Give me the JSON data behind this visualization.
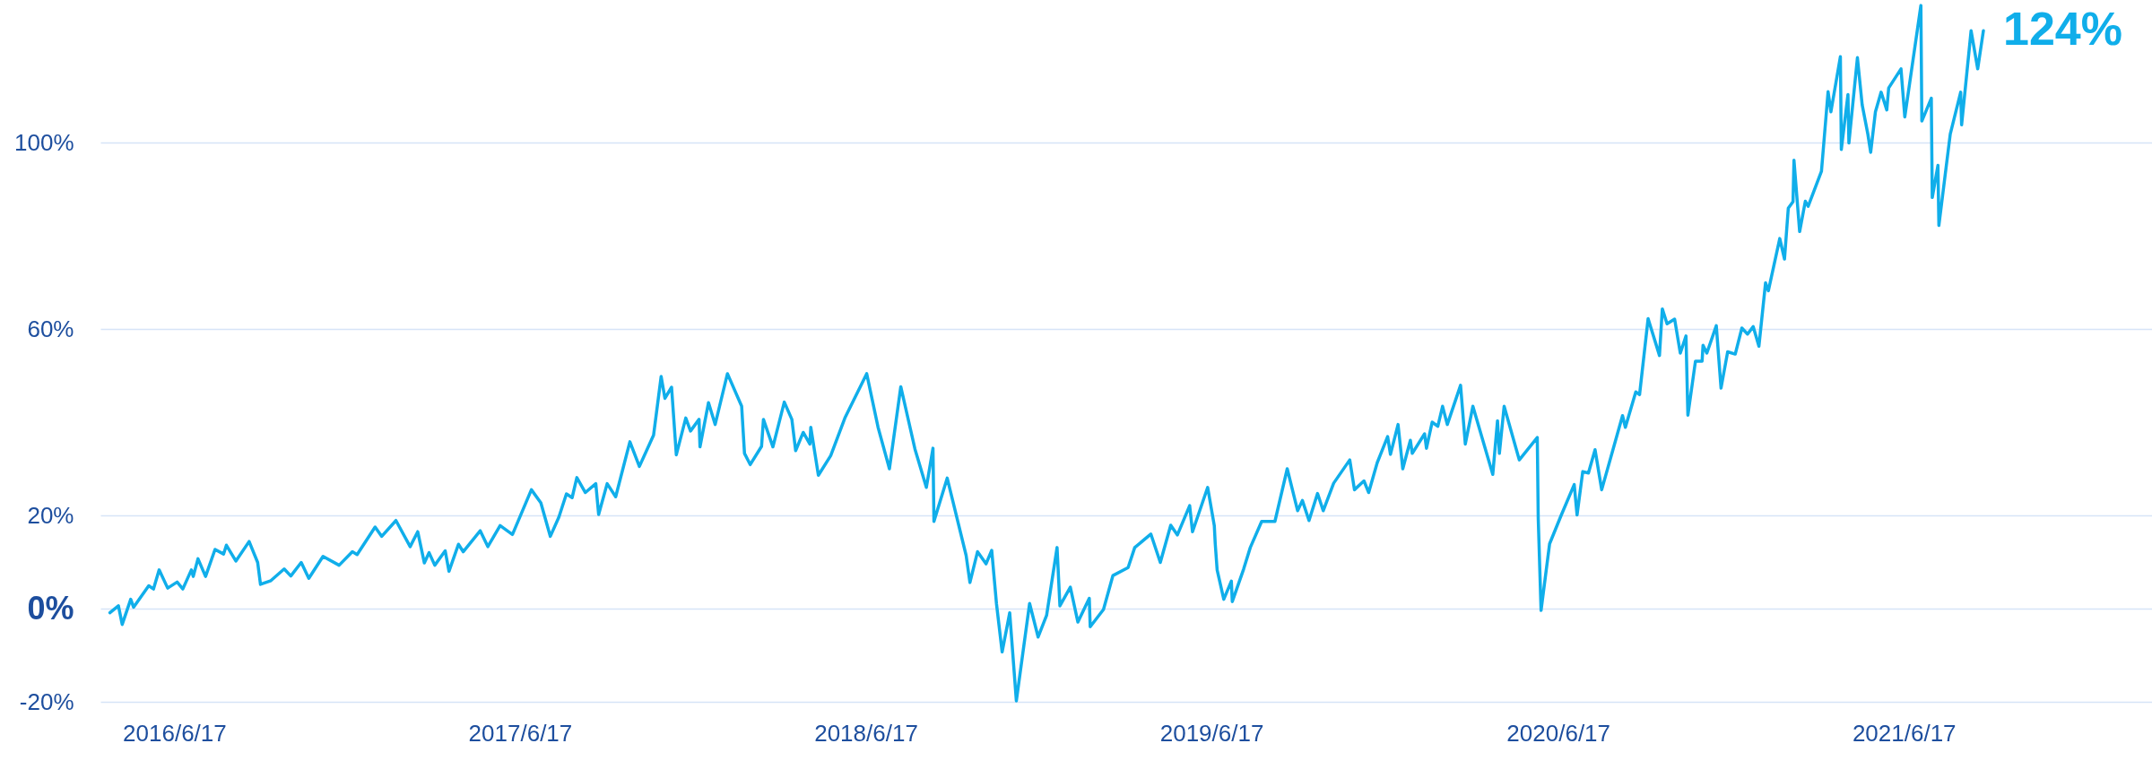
{
  "chart_data": {
    "type": "line",
    "x": [
      "2016-04-10",
      "2016-04-19",
      "2016-04-23",
      "2016-05-02",
      "2016-05-05",
      "2016-05-21",
      "2016-05-26",
      "2016-06-01",
      "2016-06-10",
      "2016-06-20",
      "2016-06-26",
      "2016-07-05",
      "2016-07-07",
      "2016-07-12",
      "2016-07-20",
      "2016-07-30",
      "2016-08-08",
      "2016-08-11",
      "2016-08-21",
      "2016-09-04",
      "2016-09-13",
      "2016-09-16",
      "2016-09-27",
      "2016-10-11",
      "2016-10-18",
      "2016-10-29",
      "2016-11-06",
      "2016-11-21",
      "2016-12-08",
      "2016-12-22",
      "2016-12-27",
      "2017-01-15",
      "2017-01-22",
      "2017-02-06",
      "2017-02-21",
      "2017-03-01",
      "2017-03-08",
      "2017-03-13",
      "2017-03-19",
      "2017-03-30",
      "2017-04-03",
      "2017-04-13",
      "2017-04-18",
      "2017-05-06",
      "2017-05-14",
      "2017-05-27",
      "2017-06-09",
      "2017-06-29",
      "2017-07-09",
      "2017-07-19",
      "2017-07-28",
      "2017-08-05",
      "2017-08-11",
      "2017-08-16",
      "2017-08-25",
      "2017-09-05",
      "2017-09-08",
      "2017-09-17",
      "2017-09-26",
      "2017-10-11",
      "2017-10-21",
      "2017-11-05",
      "2017-11-13",
      "2017-11-17",
      "2017-11-24",
      "2017-11-29",
      "2017-12-09",
      "2017-12-14",
      "2017-12-23",
      "2017-12-24",
      "2018-01-02",
      "2018-01-09",
      "2018-01-22",
      "2018-02-06",
      "2018-02-09",
      "2018-02-15",
      "2018-02-27",
      "2018-03-01",
      "2018-03-11",
      "2018-03-23",
      "2018-03-31",
      "2018-04-04",
      "2018-04-12",
      "2018-04-19",
      "2018-04-20",
      "2018-04-28",
      "2018-05-11",
      "2018-05-26",
      "2018-06-18",
      "2018-06-30",
      "2018-07-12",
      "2018-07-24",
      "2018-08-08",
      "2018-08-20",
      "2018-08-27",
      "2018-08-28",
      "2018-09-11",
      "2018-10-01",
      "2018-10-05",
      "2018-10-13",
      "2018-10-22",
      "2018-10-28",
      "2018-11-02",
      "2018-11-08",
      "2018-11-16",
      "2018-11-23",
      "2018-12-07",
      "2018-12-16",
      "2018-12-25",
      "2019-01-05",
      "2019-01-08",
      "2019-01-19",
      "2019-01-27",
      "2019-02-08",
      "2019-02-09",
      "2019-02-23",
      "2019-03-05",
      "2019-03-21",
      "2019-03-28",
      "2019-04-14",
      "2019-04-24",
      "2019-05-05",
      "2019-05-12",
      "2019-05-25",
      "2019-05-28",
      "2019-06-13",
      "2019-06-20",
      "2019-06-21",
      "2019-06-23",
      "2019-06-30",
      "2019-07-08",
      "2019-07-09",
      "2019-07-21",
      "2019-07-28",
      "2019-08-09",
      "2019-08-23",
      "2019-09-05",
      "2019-09-16",
      "2019-09-21",
      "2019-09-28",
      "2019-10-07",
      "2019-10-13",
      "2019-10-24",
      "2019-11-10",
      "2019-11-15",
      "2019-11-25",
      "2019-11-30",
      "2019-12-09",
      "2019-12-20",
      "2019-12-23",
      "2019-12-31",
      "2020-01-05",
      "2020-01-13",
      "2020-01-15",
      "2020-01-28",
      "2020-01-30",
      "2020-02-05",
      "2020-02-11",
      "2020-02-16",
      "2020-02-21",
      "2020-03-06",
      "2020-03-11",
      "2020-03-19",
      "2020-04-09",
      "2020-04-14",
      "2020-04-16",
      "2020-04-21",
      "2020-05-07",
      "2020-05-26",
      "2020-05-27",
      "2020-05-30",
      "2020-06-08",
      "2020-06-20",
      "2020-07-04",
      "2020-07-07",
      "2020-07-13",
      "2020-07-19",
      "2020-07-26",
      "2020-08-02",
      "2020-08-24",
      "2020-08-27",
      "2020-09-07",
      "2020-09-11",
      "2020-09-20",
      "2020-10-02",
      "2020-10-05",
      "2020-10-10",
      "2020-10-18",
      "2020-10-24",
      "2020-10-30",
      "2020-11-01",
      "2020-11-09",
      "2020-11-16",
      "2020-11-17",
      "2020-11-21",
      "2020-12-01",
      "2020-12-06",
      "2020-12-13",
      "2020-12-21",
      "2020-12-28",
      "2021-01-03",
      "2021-01-09",
      "2021-01-15",
      "2021-01-22",
      "2021-01-25",
      "2021-02-06",
      "2021-02-11",
      "2021-02-15",
      "2021-02-20",
      "2021-02-21",
      "2021-02-27",
      "2021-03-05",
      "2021-03-08",
      "2021-03-22",
      "2021-03-25",
      "2021-03-29",
      "2021-04-01",
      "2021-04-11",
      "2021-04-12",
      "2021-04-19",
      "2021-04-20",
      "2021-04-29",
      "2021-05-04",
      "2021-05-10",
      "2021-05-13",
      "2021-05-18",
      "2021-05-24",
      "2021-05-30",
      "2021-06-01",
      "2021-06-14",
      "2021-06-18",
      "2021-07-05",
      "2021-07-06",
      "2021-07-16",
      "2021-07-17",
      "2021-07-23",
      "2021-07-24",
      "2021-08-05",
      "2021-08-16",
      "2021-08-17",
      "2021-08-27",
      "2021-09-03",
      "2021-09-09"
    ],
    "series": [
      {
        "color": "#10aeea",
        "values": [
          -0.9,
          0.6,
          -3.4,
          2.0,
          0.3,
          4.9,
          4.2,
          8.3,
          4.4,
          5.7,
          4.2,
          8.3,
          6.9,
          10.7,
          6.9,
          12.7,
          11.7,
          13.6,
          10.2,
          14.4,
          9.9,
          5.2,
          6.0,
          8.5,
          7.0,
          9.9,
          6.5,
          11.2,
          9.3,
          12.2,
          11.6,
          17.5,
          15.5,
          18.9,
          13.3,
          16.5,
          9.8,
          12.0,
          9.3,
          12.4,
          8.0,
          13.8,
          12.2,
          16.7,
          13.3,
          17.8,
          15.9,
          25.5,
          22.7,
          15.5,
          19.6,
          24.6,
          23.8,
          28.1,
          24.9,
          26.8,
          20.2,
          26.8,
          24.0,
          35.8,
          30.5,
          37.2,
          49.8,
          45.1,
          47.5,
          33.0,
          40.9,
          38.1,
          40.6,
          34.7,
          44.2,
          39.5,
          50.4,
          43.4,
          33.3,
          30.9,
          34.8,
          40.6,
          34.7,
          44.3,
          40.6,
          33.9,
          37.8,
          35.3,
          38.9,
          28.6,
          32.8,
          40.9,
          50.4,
          38.9,
          30.0,
          47.6,
          34.2,
          26.0,
          34.4,
          18.7,
          28.0,
          11.4,
          5.6,
          12.2,
          9.6,
          12.5,
          1.1,
          -9.3,
          -0.9,
          -19.8,
          1.1,
          -6.1,
          -1.4,
          13.1,
          0.6,
          4.6,
          -2.9,
          2.2,
          -3.9,
          -0.2,
          7.1,
          8.8,
          13.1,
          16.0,
          9.9,
          17.9,
          15.8,
          22.1,
          16.5,
          26.0,
          17.8,
          13.9,
          8.3,
          2.0,
          5.9,
          1.5,
          8.5,
          13.1,
          18.7,
          18.7,
          30.0,
          21.0,
          23.2,
          18.9,
          24.7,
          21.0,
          26.9,
          31.9,
          25.5,
          27.4,
          24.9,
          31.3,
          36.9,
          33.1,
          39.5,
          30.0,
          36.1,
          33.3,
          37.5,
          34.4,
          40.0,
          39.1,
          43.4,
          39.5,
          47.9,
          35.3,
          43.4,
          28.8,
          40.3,
          33.3,
          43.4,
          31.9,
          36.7,
          19.4,
          -0.4,
          13.9,
          19.9,
          26.6,
          20.1,
          29.4,
          29.1,
          34.1,
          25.5,
          41.4,
          38.9,
          46.5,
          45.9,
          62.2,
          54.3,
          64.3,
          61.1,
          62.1,
          54.8,
          58.5,
          41.5,
          53.1,
          53.1,
          56.5,
          54.8,
          60.7,
          47.3,
          55.1,
          54.6,
          60.2,
          58.9,
          60.5,
          56.3,
          69.9,
          68.2,
          79.4,
          75.0,
          85.9,
          87.3,
          96.2,
          80.9,
          87.4,
          86.3,
          93.8,
          101.1,
          110.9,
          106.6,
          118.4,
          98.5,
          110.3,
          99.9,
          118.2,
          108.1,
          101.8,
          97.9,
          106.6,
          110.8,
          107.0,
          111.7,
          115.8,
          105.5,
          129.4,
          104.6,
          109.5,
          88.2,
          95.1,
          82.2,
          101.8,
          110.8,
          103.8,
          124.0,
          115.8,
          124
        ]
      }
    ],
    "xlim": [
      "2016-03-31",
      "2022-03-06"
    ],
    "xticks": [
      {
        "value": "2016-06-17",
        "label": "2016/6/17"
      },
      {
        "value": "2017-06-17",
        "label": "2017/6/17"
      },
      {
        "value": "2018-06-17",
        "label": "2018/6/17"
      },
      {
        "value": "2019-06-17",
        "label": "2019/6/17"
      },
      {
        "value": "2020-06-17",
        "label": "2020/6/17"
      },
      {
        "value": "2021-06-17",
        "label": "2021/6/17"
      }
    ],
    "ylim": [
      -20,
      130
    ],
    "yticks": [
      {
        "value": -20,
        "label": "-20%"
      },
      {
        "value": 0,
        "label": "0%"
      },
      {
        "value": 20,
        "label": "20%"
      },
      {
        "value": 60,
        "label": "60%"
      },
      {
        "value": 100,
        "label": "100%"
      }
    ],
    "grid": "y",
    "annotations": [
      {
        "text": "124%",
        "x": "2021-09-09",
        "y": 124
      }
    ]
  }
}
